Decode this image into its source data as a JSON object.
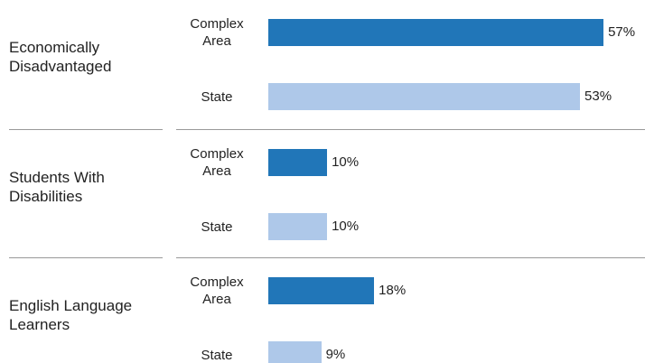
{
  "chart_data": {
    "type": "bar",
    "orientation": "horizontal",
    "categories": [
      "Economically Disadvantaged",
      "Students With Disabilities",
      "English Language Learners"
    ],
    "series": [
      {
        "name": "Complex Area",
        "color": "#2176b8",
        "values": [
          57,
          10,
          18
        ],
        "value_labels": [
          "57%",
          "10%",
          "18%"
        ]
      },
      {
        "name": "State",
        "color": "#aec8e9",
        "values": [
          53,
          10,
          9
        ],
        "value_labels": [
          "53%",
          "10%",
          "9%"
        ]
      }
    ]
  }
}
